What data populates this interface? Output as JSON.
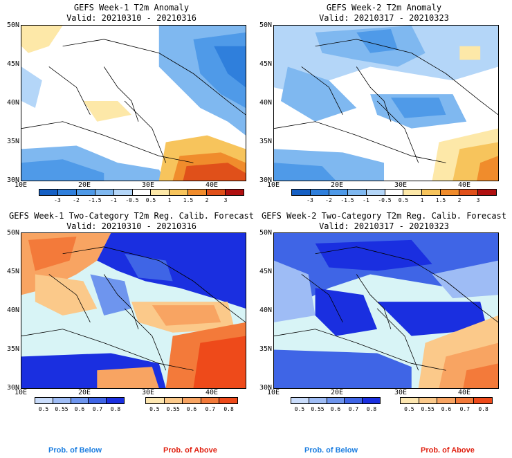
{
  "panels": [
    {
      "title1": "GEFS Week-1 T2m Anomaly",
      "title2": "Valid: 20210310 - 20210316"
    },
    {
      "title1": "GEFS Week-2 T2m Anomaly",
      "title2": "Valid: 20210317 - 20210323"
    },
    {
      "title1": "GEFS Week-1 Two-Category T2m Reg. Calib. Forecast",
      "title2": "Valid: 20210310 - 20210316"
    },
    {
      "title1": "GEFS Week-2 Two-Category T2m Reg. Calib. Forecast",
      "title2": "Valid: 20210317 - 20210323"
    }
  ],
  "lat_ticks": [
    "50N",
    "45N",
    "40N",
    "35N",
    "30N"
  ],
  "lon_ticks": [
    "10E",
    "20E",
    "30E",
    "40E"
  ],
  "anomaly_colorbar": {
    "labels": [
      "-3",
      "-2",
      "-1.5",
      "-1",
      "-0.5",
      "0.5",
      "1",
      "1.5",
      "2",
      "3"
    ],
    "colors": [
      "#1660c4",
      "#2f7fdc",
      "#4f9ae8",
      "#7fb8f0",
      "#b4d6f8",
      "#ffffff",
      "#fde8a8",
      "#f7c45c",
      "#f08c2c",
      "#e0501a",
      "#b01010"
    ]
  },
  "prob_below": {
    "labels": [
      "0.5",
      "0.55",
      "0.6",
      "0.7",
      "0.8"
    ],
    "colors": [
      "#c9dcfb",
      "#9ebcf5",
      "#6e95ee",
      "#3f65e6",
      "#1a2fe0"
    ],
    "caption": "Prob. of Below"
  },
  "prob_above": {
    "labels": [
      "0.5",
      "0.55",
      "0.6",
      "0.7",
      "0.8"
    ],
    "colors": [
      "#fde6b0",
      "#fbc98a",
      "#f8a462",
      "#f37a3a",
      "#ee4a1a"
    ],
    "caption": "Prob. of Above"
  },
  "colors": {
    "sea_prob": "#d8f4f6",
    "below_caption": "#1a7de0",
    "above_caption": "#e02010"
  }
}
